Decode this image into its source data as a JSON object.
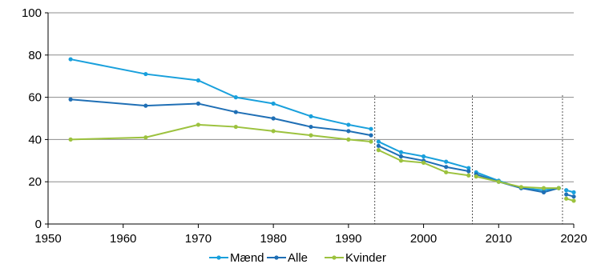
{
  "chart_data": {
    "type": "line",
    "title": "",
    "xlabel": "",
    "ylabel": "",
    "xlim": [
      1950,
      2020
    ],
    "ylim": [
      0,
      100
    ],
    "xticks": [
      1950,
      1960,
      1970,
      1980,
      1990,
      2000,
      2010,
      2020
    ],
    "yticks": [
      0,
      20,
      40,
      60,
      80,
      100
    ],
    "grid": true,
    "legend_position": "bottom",
    "series_breaks": [
      1993.5,
      2006.5,
      2018.5
    ],
    "series": [
      {
        "name": "Mænd",
        "color": "#19A0DC",
        "segments": [
          [
            [
              1953,
              78
            ],
            [
              1963,
              71
            ],
            [
              1970,
              68
            ],
            [
              1975,
              60
            ],
            [
              1980,
              57
            ],
            [
              1985,
              51
            ],
            [
              1990,
              47
            ],
            [
              1993,
              45
            ]
          ],
          [
            [
              1994,
              39
            ],
            [
              1997,
              34
            ],
            [
              2000,
              32
            ],
            [
              2003,
              29.5
            ],
            [
              2006,
              26.5
            ]
          ],
          [
            [
              2007,
              24.5
            ],
            [
              2010,
              20.5
            ],
            [
              2013,
              17
            ],
            [
              2016,
              16
            ],
            [
              2018,
              17
            ]
          ],
          [
            [
              2019,
              16
            ],
            [
              2020,
              15
            ]
          ]
        ]
      },
      {
        "name": "Alle",
        "color": "#1F6FB5",
        "segments": [
          [
            [
              1953,
              59
            ],
            [
              1963,
              56
            ],
            [
              1970,
              57
            ],
            [
              1975,
              53
            ],
            [
              1980,
              50
            ],
            [
              1985,
              46
            ],
            [
              1990,
              44
            ],
            [
              1993,
              42
            ]
          ],
          [
            [
              1994,
              37
            ],
            [
              1997,
              32
            ],
            [
              2000,
              30
            ],
            [
              2003,
              27
            ],
            [
              2006,
              25
            ]
          ],
          [
            [
              2007,
              23.5
            ],
            [
              2010,
              20
            ],
            [
              2013,
              17
            ],
            [
              2016,
              15
            ],
            [
              2018,
              17
            ]
          ],
          [
            [
              2019,
              14
            ],
            [
              2020,
              13
            ]
          ]
        ]
      },
      {
        "name": "Kvinder",
        "color": "#9CC23E",
        "segments": [
          [
            [
              1953,
              40
            ],
            [
              1963,
              41
            ],
            [
              1970,
              47
            ],
            [
              1975,
              46
            ],
            [
              1980,
              44
            ],
            [
              1985,
              42
            ],
            [
              1990,
              40
            ],
            [
              1993,
              39
            ]
          ],
          [
            [
              1994,
              35
            ],
            [
              1997,
              30
            ],
            [
              2000,
              29
            ],
            [
              2003,
              24.5
            ],
            [
              2006,
              23
            ]
          ],
          [
            [
              2007,
              22.5
            ],
            [
              2010,
              20
            ],
            [
              2013,
              17.5
            ],
            [
              2016,
              17
            ],
            [
              2018,
              17
            ]
          ],
          [
            [
              2019,
              12
            ],
            [
              2020,
              11
            ]
          ]
        ]
      }
    ]
  }
}
